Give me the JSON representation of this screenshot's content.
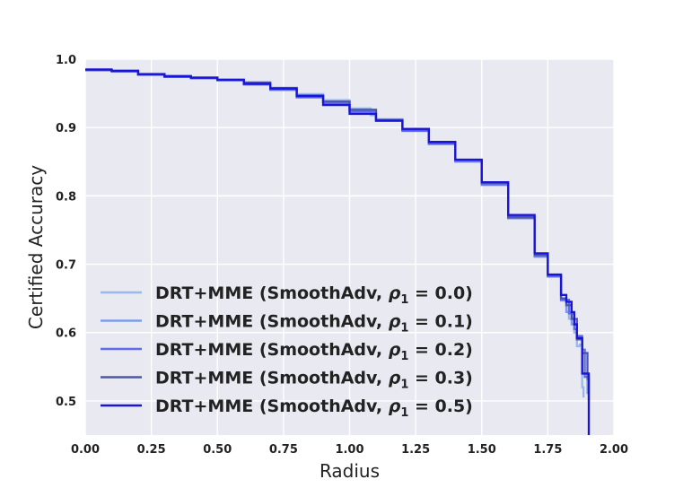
{
  "chart_data": {
    "type": "line",
    "xlabel": "Radius",
    "ylabel": "Certified Accuracy",
    "xlim": [
      0.0,
      2.0
    ],
    "ylim": [
      0.45,
      1.0
    ],
    "x_ticks": [
      0.0,
      0.25,
      0.5,
      0.75,
      1.0,
      1.25,
      1.5,
      1.75,
      2.0
    ],
    "x_tick_labels": [
      "0.00",
      "0.25",
      "0.50",
      "0.75",
      "1.00",
      "1.25",
      "1.50",
      "1.75",
      "2.00"
    ],
    "y_ticks": [
      0.5,
      0.6,
      0.7,
      0.8,
      0.9,
      1.0
    ],
    "y_tick_labels": [
      "0.5",
      "0.6",
      "0.7",
      "0.8",
      "0.9",
      "1.0"
    ],
    "grid": true,
    "background": "#e9e9f2",
    "legend_position": "lower-left",
    "series": [
      {
        "name": "DRT+MME (SmoothAdv, ρ1 = 0.0)",
        "legend_prefix": "DRT+MME (SmoothAdv, ",
        "legend_rho": "ρ",
        "legend_sub": "1",
        "legend_value": " = 0.0)",
        "color": "#9ab8f0",
        "points": [
          [
            0.0,
            0.984
          ],
          [
            0.1,
            0.983
          ],
          [
            0.2,
            0.979
          ],
          [
            0.3,
            0.976
          ],
          [
            0.4,
            0.973
          ],
          [
            0.5,
            0.97
          ],
          [
            0.6,
            0.965
          ],
          [
            0.7,
            0.958
          ],
          [
            0.8,
            0.949
          ],
          [
            0.9,
            0.94
          ],
          [
            1.0,
            0.928
          ],
          [
            1.08,
            0.918
          ],
          [
            1.1,
            0.912
          ],
          [
            1.2,
            0.897
          ],
          [
            1.3,
            0.877
          ],
          [
            1.4,
            0.852
          ],
          [
            1.5,
            0.818
          ],
          [
            1.6,
            0.77
          ],
          [
            1.7,
            0.713
          ],
          [
            1.75,
            0.683
          ],
          [
            1.8,
            0.648
          ],
          [
            1.83,
            0.62
          ],
          [
            1.85,
            0.6
          ],
          [
            1.86,
            0.58
          ],
          [
            1.87,
            0.582
          ],
          [
            1.88,
            0.52
          ],
          [
            1.885,
            0.505
          ]
        ]
      },
      {
        "name": "DRT+MME (SmoothAdv, ρ1 = 0.1)",
        "legend_prefix": "DRT+MME (SmoothAdv, ",
        "legend_rho": "ρ",
        "legend_sub": "1",
        "legend_value": " = 0.1)",
        "color": "#7f9cea",
        "points": [
          [
            0.0,
            0.984
          ],
          [
            0.1,
            0.982
          ],
          [
            0.2,
            0.978
          ],
          [
            0.3,
            0.975
          ],
          [
            0.4,
            0.972
          ],
          [
            0.5,
            0.969
          ],
          [
            0.6,
            0.964
          ],
          [
            0.7,
            0.957
          ],
          [
            0.8,
            0.947
          ],
          [
            0.9,
            0.938
          ],
          [
            1.0,
            0.926
          ],
          [
            1.1,
            0.912
          ],
          [
            1.2,
            0.896
          ],
          [
            1.3,
            0.876
          ],
          [
            1.4,
            0.85
          ],
          [
            1.5,
            0.816
          ],
          [
            1.6,
            0.767
          ],
          [
            1.7,
            0.711
          ],
          [
            1.75,
            0.682
          ],
          [
            1.8,
            0.647
          ],
          [
            1.82,
            0.63
          ],
          [
            1.84,
            0.612
          ],
          [
            1.86,
            0.595
          ],
          [
            1.87,
            0.59
          ],
          [
            1.88,
            0.54
          ],
          [
            1.9,
            0.535
          ],
          [
            1.9,
            0.51
          ]
        ]
      },
      {
        "name": "DRT+MME (SmoothAdv, ρ1 = 0.2)",
        "legend_prefix": "DRT+MME (SmoothAdv, ",
        "legend_rho": "ρ",
        "legend_sub": "1",
        "legend_value": " = 0.2)",
        "color": "#5e6cf0",
        "points": [
          [
            0.0,
            0.984
          ],
          [
            0.1,
            0.982
          ],
          [
            0.2,
            0.977
          ],
          [
            0.3,
            0.974
          ],
          [
            0.4,
            0.972
          ],
          [
            0.5,
            0.969
          ],
          [
            0.6,
            0.963
          ],
          [
            0.7,
            0.955
          ],
          [
            0.8,
            0.944
          ],
          [
            0.9,
            0.935
          ],
          [
            1.0,
            0.923
          ],
          [
            1.1,
            0.91
          ],
          [
            1.2,
            0.895
          ],
          [
            1.3,
            0.876
          ],
          [
            1.4,
            0.851
          ],
          [
            1.5,
            0.817
          ],
          [
            1.6,
            0.768
          ],
          [
            1.7,
            0.712
          ],
          [
            1.75,
            0.682
          ],
          [
            1.8,
            0.648
          ],
          [
            1.83,
            0.628
          ],
          [
            1.85,
            0.605
          ],
          [
            1.86,
            0.595
          ],
          [
            1.88,
            0.575
          ],
          [
            1.89,
            0.535
          ],
          [
            1.9,
            0.53
          ]
        ]
      },
      {
        "name": "DRT+MME (SmoothAdv, ρ1 = 0.3)",
        "legend_prefix": "DRT+MME (SmoothAdv, ",
        "legend_rho": "ρ",
        "legend_sub": "1",
        "legend_value": " = 0.3)",
        "color": "#4d55a8",
        "points": [
          [
            0.0,
            0.984
          ],
          [
            0.1,
            0.983
          ],
          [
            0.2,
            0.978
          ],
          [
            0.3,
            0.975
          ],
          [
            0.4,
            0.973
          ],
          [
            0.5,
            0.97
          ],
          [
            0.6,
            0.966
          ],
          [
            0.7,
            0.958
          ],
          [
            0.8,
            0.947
          ],
          [
            0.9,
            0.938
          ],
          [
            1.0,
            0.926
          ],
          [
            1.1,
            0.911
          ],
          [
            1.2,
            0.897
          ],
          [
            1.3,
            0.878
          ],
          [
            1.4,
            0.853
          ],
          [
            1.5,
            0.819
          ],
          [
            1.6,
            0.769
          ],
          [
            1.7,
            0.714
          ],
          [
            1.75,
            0.684
          ],
          [
            1.8,
            0.65
          ],
          [
            1.82,
            0.64
          ],
          [
            1.84,
            0.62
          ],
          [
            1.86,
            0.59
          ],
          [
            1.88,
            0.57
          ],
          [
            1.9,
            0.535
          ],
          [
            1.905,
            0.5
          ]
        ]
      },
      {
        "name": "DRT+MME (SmoothAdv, ρ1 = 0.5)",
        "legend_prefix": "DRT+MME (SmoothAdv, ",
        "legend_rho": "ρ",
        "legend_sub": "1",
        "legend_value": " = 0.5)",
        "color": "#1a14d6",
        "points": [
          [
            0.0,
            0.985
          ],
          [
            0.1,
            0.983
          ],
          [
            0.2,
            0.978
          ],
          [
            0.3,
            0.975
          ],
          [
            0.4,
            0.973
          ],
          [
            0.5,
            0.97
          ],
          [
            0.6,
            0.964
          ],
          [
            0.7,
            0.957
          ],
          [
            0.8,
            0.946
          ],
          [
            0.9,
            0.933
          ],
          [
            1.0,
            0.92
          ],
          [
            1.1,
            0.91
          ],
          [
            1.2,
            0.898
          ],
          [
            1.3,
            0.879
          ],
          [
            1.4,
            0.853
          ],
          [
            1.5,
            0.82
          ],
          [
            1.6,
            0.772
          ],
          [
            1.7,
            0.716
          ],
          [
            1.75,
            0.685
          ],
          [
            1.8,
            0.655
          ],
          [
            1.82,
            0.645
          ],
          [
            1.84,
            0.63
          ],
          [
            1.85,
            0.612
          ],
          [
            1.86,
            0.592
          ],
          [
            1.87,
            0.592
          ],
          [
            1.88,
            0.592
          ],
          [
            1.88,
            0.54
          ],
          [
            1.9,
            0.54
          ],
          [
            1.905,
            0.45
          ]
        ]
      }
    ]
  }
}
